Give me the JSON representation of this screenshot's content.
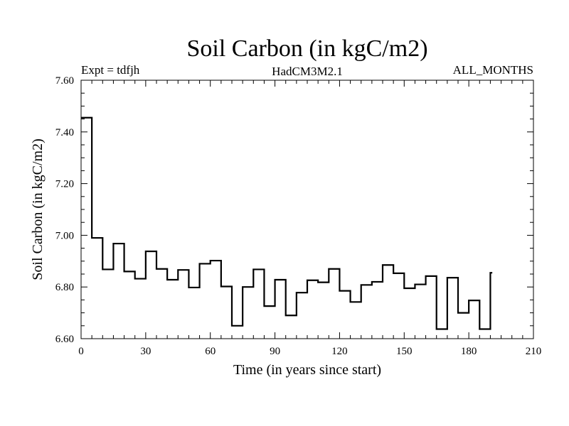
{
  "chart_data": {
    "type": "line",
    "title": "Soil Carbon (in kgC/m2)",
    "subtitle_left": "Expt = tdfjh",
    "subtitle_center": "HadCM3M2.1",
    "subtitle_right": "ALL_MONTHS",
    "xlabel": "Time (in years since start)",
    "ylabel": "Soil Carbon (in kgC/m2)",
    "xlim": [
      0,
      210
    ],
    "ylim": [
      6.6,
      7.6
    ],
    "xticks": [
      "0",
      "30",
      "60",
      "90",
      "120",
      "150",
      "180",
      "210"
    ],
    "yticks": [
      "6.60",
      "6.80",
      "7.00",
      "7.20",
      "7.40",
      "7.60"
    ],
    "line_color": "#000000",
    "step": "post",
    "series": [
      {
        "x": [
          0,
          5,
          10,
          15,
          20,
          25,
          30,
          35,
          40,
          45,
          50,
          55,
          60,
          65,
          70,
          75,
          80,
          85,
          90,
          95,
          100,
          105,
          110,
          115,
          120,
          125,
          130,
          135,
          140,
          145,
          150,
          155,
          160,
          165,
          170,
          175,
          180,
          185,
          190
        ],
        "values": [
          7.455,
          6.99,
          6.868,
          6.968,
          6.86,
          6.832,
          6.938,
          6.87,
          6.828,
          6.866,
          6.798,
          6.89,
          6.902,
          6.802,
          6.65,
          6.8,
          6.868,
          6.726,
          6.828,
          6.69,
          6.778,
          6.826,
          6.818,
          6.87,
          6.785,
          6.742,
          6.808,
          6.82,
          6.885,
          6.853,
          6.795,
          6.81,
          6.842,
          6.637,
          6.836,
          6.7,
          6.748,
          6.637,
          6.855
        ]
      }
    ]
  }
}
